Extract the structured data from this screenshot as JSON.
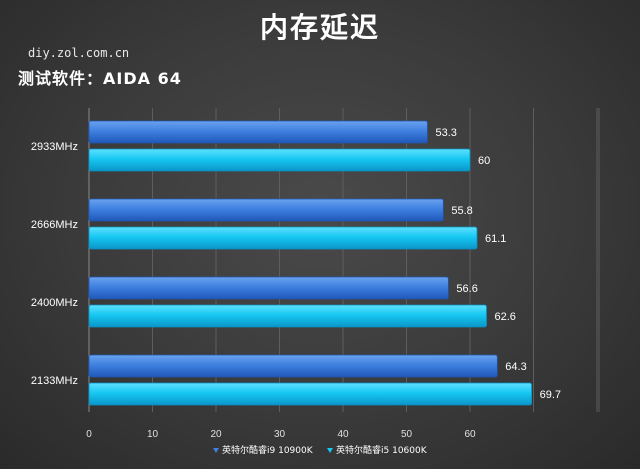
{
  "header": {
    "title": "内存延迟",
    "source": "diy.zol.com.cn",
    "subtitle": "测试软件：AIDA 64"
  },
  "colors": {
    "series1": "#3f80e0",
    "series1_dark": "#1f55b0",
    "series2": "#17c8f2",
    "series2_dark": "#0a8fc2",
    "grid": "#5c5c5c",
    "background": "#3a3a3a"
  },
  "chart_data": {
    "type": "bar",
    "orientation": "horizontal",
    "title": "内存延迟",
    "subtitle": "测试软件：AIDA 64",
    "categories": [
      "2933MHz",
      "2666MHz",
      "2400MHz",
      "2133MHz"
    ],
    "series": [
      {
        "name": "英特尔酷睿i9 10900K",
        "values": [
          53.3,
          55.8,
          56.6,
          64.3
        ]
      },
      {
        "name": "英特尔酷睿i5 10600K",
        "values": [
          60,
          61.1,
          62.6,
          69.7
        ]
      }
    ],
    "xlim": [
      0,
      80
    ],
    "xticks": [
      0,
      10,
      20,
      30,
      40,
      50,
      60
    ],
    "grid": true,
    "legend_position": "bottom"
  }
}
